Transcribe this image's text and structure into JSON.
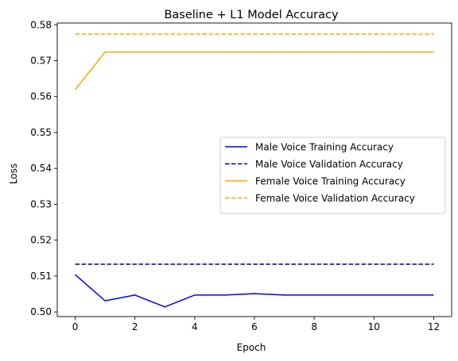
{
  "chart_data": {
    "type": "line",
    "title": "Baseline + L1 Model Accuracy",
    "xlabel": "Epoch",
    "ylabel": "Loss",
    "xlim": [
      -0.6,
      12.6
    ],
    "ylim": [
      0.4987,
      0.5805
    ],
    "xticks": [
      0,
      2,
      4,
      6,
      8,
      10,
      12
    ],
    "yticks": [
      0.5,
      0.51,
      0.52,
      0.53,
      0.54,
      0.55,
      0.56,
      0.57,
      0.58
    ],
    "grid": false,
    "legend": {
      "placement": "center-right"
    },
    "x": [
      0,
      1,
      2,
      3,
      4,
      5,
      6,
      7,
      8,
      9,
      10,
      11,
      12
    ],
    "series": [
      {
        "name": "Male Voice Training Accuracy",
        "color": "#0000ff",
        "style": "solid",
        "values": [
          0.5104,
          0.5031,
          0.5047,
          0.5014,
          0.5047,
          0.5047,
          0.5051,
          0.5047,
          0.5047,
          0.5047,
          0.5047,
          0.5047,
          0.5047
        ]
      },
      {
        "name": "Male Voice Validation Accuracy",
        "color": "#00008b",
        "style": "dashed",
        "values": [
          0.5133,
          0.5133,
          0.5133,
          0.5133,
          0.5133,
          0.5133,
          0.5133,
          0.5133,
          0.5133,
          0.5133,
          0.5133,
          0.5133,
          0.5133
        ]
      },
      {
        "name": "Female Voice Training Accuracy",
        "color": "#ffa500",
        "style": "solid",
        "values": [
          0.5619,
          0.5724,
          0.5724,
          0.5724,
          0.5724,
          0.5724,
          0.5724,
          0.5724,
          0.5724,
          0.5724,
          0.5724,
          0.5724,
          0.5724
        ]
      },
      {
        "name": "Female Voice Validation Accuracy",
        "color": "#ffa500",
        "style": "dashed",
        "values": [
          0.5774,
          0.5774,
          0.5774,
          0.5774,
          0.5774,
          0.5774,
          0.5774,
          0.5774,
          0.5774,
          0.5774,
          0.5774,
          0.5774,
          0.5774
        ]
      }
    ]
  }
}
